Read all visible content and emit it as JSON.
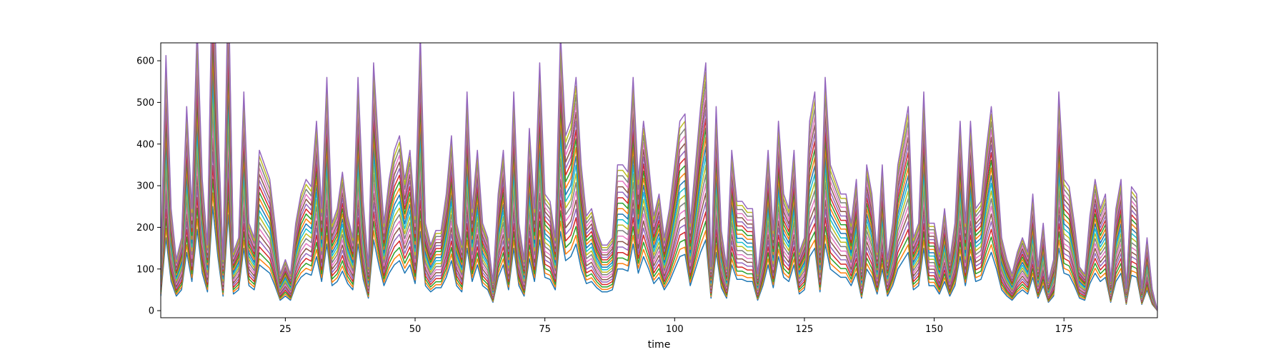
{
  "chart_data": {
    "type": "line",
    "title": "",
    "xlabel": "time",
    "ylabel": "",
    "xlim": [
      1,
      193
    ],
    "ylim": [
      -17,
      643
    ],
    "xticks": [
      25,
      50,
      75,
      100,
      125,
      150,
      175
    ],
    "yticks": [
      0,
      100,
      200,
      300,
      400,
      500,
      600
    ],
    "xtick_labels": [
      "25",
      "50",
      "75",
      "100",
      "125",
      "150",
      "175"
    ],
    "ytick_labels": [
      "0",
      "100",
      "200",
      "300",
      "400",
      "500",
      "600"
    ],
    "grid": false,
    "legend": "none",
    "series_count": 20,
    "series_colors": [
      "#1f77b4",
      "#ff7f0e",
      "#2ca02c",
      "#d62728",
      "#9467bd",
      "#8c564b",
      "#e377c2",
      "#7f7f7f",
      "#bcbd22",
      "#17becf",
      "#1f77b4",
      "#ff7f0e",
      "#2ca02c",
      "#d62728",
      "#9467bd",
      "#8c564b",
      "#e377c2",
      "#7f7f7f",
      "#bcbd22",
      "#9467bd"
    ],
    "x": [
      1,
      2,
      3,
      4,
      5,
      6,
      7,
      8,
      9,
      10,
      11,
      12,
      13,
      14,
      15,
      16,
      17,
      18,
      19,
      20,
      21,
      22,
      23,
      24,
      25,
      26,
      27,
      28,
      29,
      30,
      31,
      32,
      33,
      34,
      35,
      36,
      37,
      38,
      39,
      40,
      41,
      42,
      43,
      44,
      45,
      46,
      47,
      48,
      49,
      50,
      51,
      52,
      53,
      54,
      55,
      56,
      57,
      58,
      59,
      60,
      61,
      62,
      63,
      64,
      65,
      66,
      67,
      68,
      69,
      70,
      71,
      72,
      73,
      74,
      75,
      76,
      77,
      78,
      79,
      80,
      81,
      82,
      83,
      84,
      85,
      86,
      87,
      88,
      89,
      90,
      91,
      92,
      93,
      94,
      95,
      96,
      97,
      98,
      99,
      100,
      101,
      102,
      103,
      104,
      105,
      106,
      107,
      108,
      109,
      110,
      111,
      112,
      113,
      114,
      115,
      116,
      117,
      118,
      119,
      120,
      121,
      122,
      123,
      124,
      125,
      126,
      127,
      128,
      129,
      130,
      131,
      132,
      133,
      134,
      135,
      136,
      137,
      138,
      139,
      140,
      141,
      142,
      143,
      144,
      145,
      146,
      147,
      148,
      149,
      150,
      151,
      152,
      153,
      154,
      155,
      156,
      157,
      158,
      159,
      160,
      161,
      162,
      163,
      164,
      165,
      166,
      167,
      168,
      169,
      170,
      171,
      172,
      173,
      174,
      175,
      176,
      177,
      178,
      179,
      180,
      181,
      182,
      183,
      184,
      185,
      186,
      187,
      188,
      189,
      190,
      191,
      192,
      193
    ],
    "lower_envelope": [
      35,
      175,
      70,
      35,
      50,
      140,
      70,
      195,
      90,
      45,
      250,
      130,
      35,
      230,
      40,
      50,
      150,
      60,
      50,
      110,
      100,
      90,
      60,
      25,
      35,
      25,
      60,
      80,
      90,
      85,
      130,
      70,
      160,
      60,
      70,
      95,
      65,
      50,
      160,
      75,
      30,
      170,
      110,
      60,
      90,
      110,
      120,
      90,
      110,
      65,
      190,
      60,
      45,
      55,
      55,
      80,
      120,
      60,
      45,
      150,
      70,
      110,
      60,
      50,
      20,
      80,
      110,
      50,
      150,
      60,
      35,
      125,
      70,
      170,
      80,
      75,
      50,
      190,
      120,
      130,
      160,
      100,
      65,
      70,
      55,
      45,
      45,
      50,
      100,
      100,
      95,
      160,
      90,
      130,
      100,
      65,
      80,
      50,
      70,
      100,
      130,
      135,
      60,
      100,
      140,
      170,
      30,
      140,
      55,
      30,
      110,
      75,
      75,
      70,
      70,
      25,
      60,
      110,
      55,
      130,
      80,
      70,
      110,
      40,
      50,
      130,
      150,
      45,
      160,
      100,
      90,
      80,
      80,
      60,
      90,
      30,
      100,
      80,
      40,
      100,
      35,
      60,
      100,
      120,
      140,
      50,
      60,
      150,
      60,
      60,
      40,
      70,
      35,
      60,
      130,
      60,
      130,
      70,
      75,
      110,
      140,
      100,
      50,
      35,
      25,
      40,
      50,
      40,
      80,
      30,
      60,
      20,
      35,
      150,
      90,
      85,
      60,
      30,
      25,
      65,
      90,
      70,
      80,
      20,
      70,
      90,
      15,
      85,
      80,
      15,
      50,
      15
    ]
  }
}
